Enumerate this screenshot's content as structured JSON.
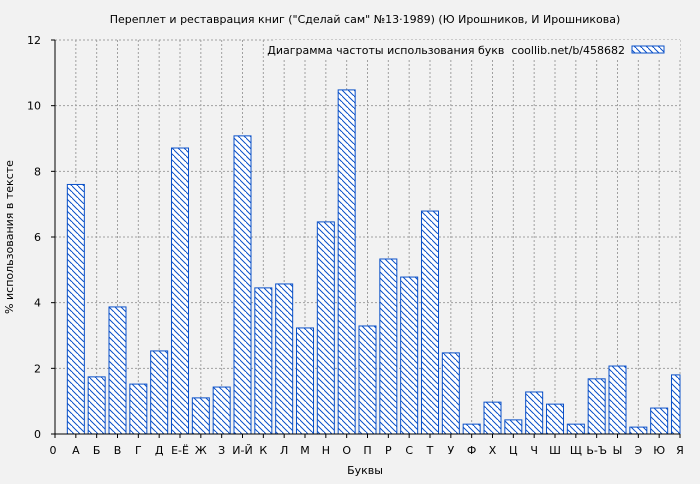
{
  "chart_data": {
    "type": "bar",
    "title": "Переплет и реставрация книг (\"Сделай сам\" №13·1989) (Ю Ирошников, И Ирошникова)",
    "xlabel": "Буквы",
    "ylabel": "% использования в тексте",
    "legend": {
      "label": "Диаграмма частоты использования букв  coollib.net/b/458682",
      "placement": "top-right"
    },
    "x_origin_label": "0",
    "categories": [
      "А",
      "Б",
      "В",
      "Г",
      "Д",
      "Е-Ё",
      "Ж",
      "З",
      "И-Й",
      "К",
      "Л",
      "М",
      "Н",
      "О",
      "П",
      "Р",
      "С",
      "Т",
      "У",
      "Ф",
      "Х",
      "Ц",
      "Ч",
      "Ш",
      "Щ",
      "Ь-Ъ",
      "Ы",
      "Э",
      "Ю",
      "Я"
    ],
    "values": [
      7.6,
      1.74,
      3.87,
      1.52,
      2.53,
      8.71,
      1.1,
      1.43,
      9.08,
      4.45,
      4.57,
      3.23,
      6.46,
      10.48,
      3.29,
      5.33,
      4.78,
      6.79,
      2.47,
      0.3,
      0.97,
      0.43,
      1.28,
      0.91,
      0.3,
      1.68,
      2.07,
      0.21,
      0.79,
      1.8
    ],
    "ylim": [
      0,
      12
    ],
    "yticks": [
      0,
      2,
      4,
      6,
      8,
      10,
      12
    ],
    "grid": true,
    "colors": {
      "bar": "#0a50c8",
      "background": "#f2f2f2",
      "grid": "#a0a0a0"
    }
  }
}
